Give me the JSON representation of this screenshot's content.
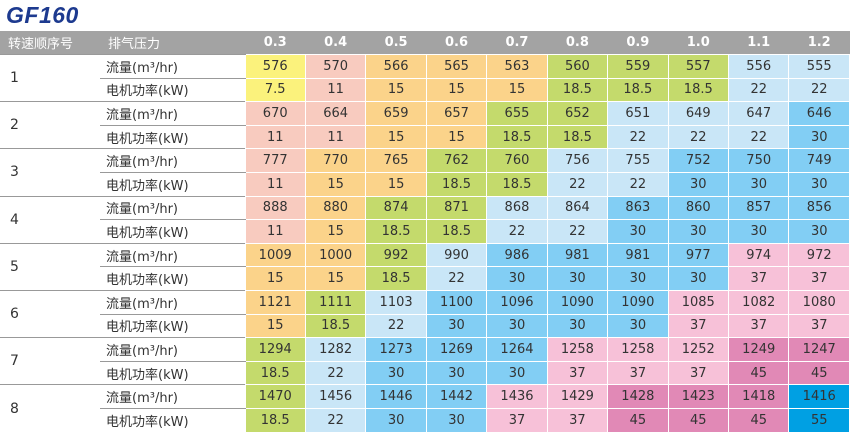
{
  "title": "GF160",
  "header": {
    "speed_label": "转速顺序号",
    "pressure_label": "排气压力",
    "pressures": [
      "0.3",
      "0.4",
      "0.5",
      "0.6",
      "0.7",
      "0.8",
      "0.9",
      "1.0",
      "1.1",
      "1.2"
    ]
  },
  "row_labels": {
    "flow": "流量(m³/hr)",
    "power": "电机功率(kW)"
  },
  "power_colors": {
    "7.5": "#fbf27c",
    "11": "#f8cbbf",
    "15": "#fbd38a",
    "18.5": "#c4da6c",
    "22": "#c9e6f7",
    "30": "#82cef4",
    "37": "#f7c1d8",
    "45": "#e189b6",
    "55": "#00a0e3"
  },
  "rows": [
    {
      "id": "1",
      "flow": [
        "576",
        "570",
        "566",
        "565",
        "563",
        "560",
        "559",
        "557",
        "556",
        "555"
      ],
      "power": [
        "7.5",
        "11",
        "15",
        "15",
        "15",
        "18.5",
        "18.5",
        "18.5",
        "22",
        "22"
      ]
    },
    {
      "id": "2",
      "flow": [
        "670",
        "664",
        "659",
        "657",
        "655",
        "652",
        "651",
        "649",
        "647",
        "646"
      ],
      "power": [
        "11",
        "11",
        "15",
        "15",
        "18.5",
        "18.5",
        "22",
        "22",
        "22",
        "30"
      ]
    },
    {
      "id": "3",
      "flow": [
        "777",
        "770",
        "765",
        "762",
        "760",
        "756",
        "755",
        "752",
        "750",
        "749"
      ],
      "power": [
        "11",
        "15",
        "15",
        "18.5",
        "18.5",
        "22",
        "22",
        "30",
        "30",
        "30"
      ]
    },
    {
      "id": "4",
      "flow": [
        "888",
        "880",
        "874",
        "871",
        "868",
        "864",
        "863",
        "860",
        "857",
        "856"
      ],
      "power": [
        "11",
        "15",
        "18.5",
        "18.5",
        "22",
        "22",
        "30",
        "30",
        "30",
        "30"
      ]
    },
    {
      "id": "5",
      "flow": [
        "1009",
        "1000",
        "992",
        "990",
        "986",
        "981",
        "981",
        "977",
        "974",
        "972"
      ],
      "power": [
        "15",
        "15",
        "18.5",
        "22",
        "30",
        "30",
        "30",
        "30",
        "37",
        "37"
      ]
    },
    {
      "id": "6",
      "flow": [
        "1121",
        "1111",
        "1103",
        "1100",
        "1096",
        "1090",
        "1090",
        "1085",
        "1082",
        "1080"
      ],
      "power": [
        "15",
        "18.5",
        "22",
        "30",
        "30",
        "30",
        "30",
        "37",
        "37",
        "37"
      ]
    },
    {
      "id": "7",
      "flow": [
        "1294",
        "1282",
        "1273",
        "1269",
        "1264",
        "1258",
        "1258",
        "1252",
        "1249",
        "1247"
      ],
      "power": [
        "18.5",
        "22",
        "30",
        "30",
        "30",
        "37",
        "37",
        "37",
        "45",
        "45"
      ]
    },
    {
      "id": "8",
      "flow": [
        "1470",
        "1456",
        "1446",
        "1442",
        "1436",
        "1429",
        "1428",
        "1423",
        "1418",
        "1416"
      ],
      "power": [
        "18.5",
        "22",
        "30",
        "30",
        "37",
        "37",
        "45",
        "45",
        "45",
        "55"
      ]
    }
  ]
}
